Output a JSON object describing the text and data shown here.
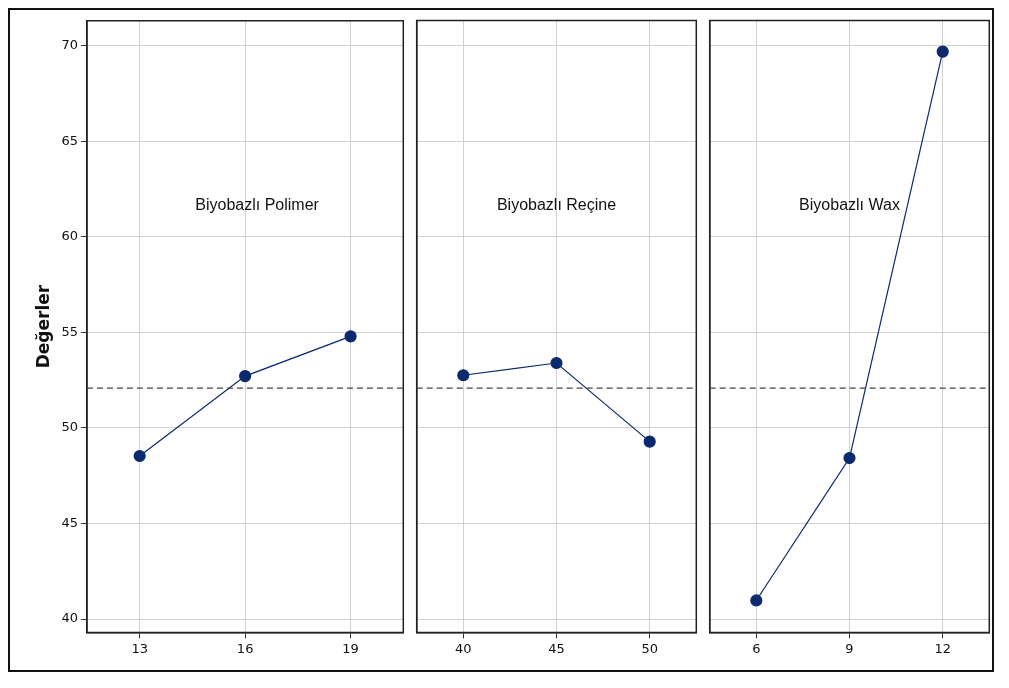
{
  "chart_data": [
    {
      "type": "line",
      "ylabel": "Değerler",
      "annotations": [
        "Biyobazlı Polimer"
      ],
      "categories": [
        "13",
        "16",
        "19"
      ],
      "series": [
        {
          "color": "#0b2a6e",
          "values": [
            48.53,
            52.71,
            54.79
          ]
        }
      ],
      "ylim": [
        39.3,
        71.3
      ],
      "yticks": [
        40,
        45,
        50,
        55,
        60,
        65,
        70
      ],
      "grid": true,
      "marker": "circle",
      "ref_lines": [
        {
          "axis": "y",
          "value": 52.08,
          "line_style": "dashed"
        }
      ]
    },
    {
      "type": "line",
      "annotations": [
        "Biyobazlı Reçine"
      ],
      "categories": [
        "40",
        "45",
        "50"
      ],
      "series": [
        {
          "color": "#0b2a6e",
          "values": [
            52.75,
            53.39,
            49.28
          ]
        }
      ],
      "ylim": [
        39.3,
        71.3
      ],
      "yticks": [
        40,
        45,
        50,
        55,
        60,
        65,
        70
      ],
      "tick_labels": "x",
      "grid": true,
      "marker": "circle",
      "ref_lines": [
        {
          "axis": "y",
          "value": 52.08,
          "line_style": "dashed"
        }
      ]
    },
    {
      "type": "line",
      "annotations": [
        "Biyobazlı Wax"
      ],
      "categories": [
        "6",
        "9",
        "12"
      ],
      "series": [
        {
          "color": "#0b2a6e",
          "values": [
            40.97,
            48.42,
            69.68
          ]
        }
      ],
      "ylim": [
        39.3,
        71.3
      ],
      "yticks": [
        40,
        45,
        50,
        55,
        60,
        65,
        70
      ],
      "tick_labels": "x",
      "grid": true,
      "marker": "circle",
      "ref_lines": [
        {
          "axis": "y",
          "value": 52.08,
          "line_style": "dashed"
        }
      ]
    }
  ]
}
